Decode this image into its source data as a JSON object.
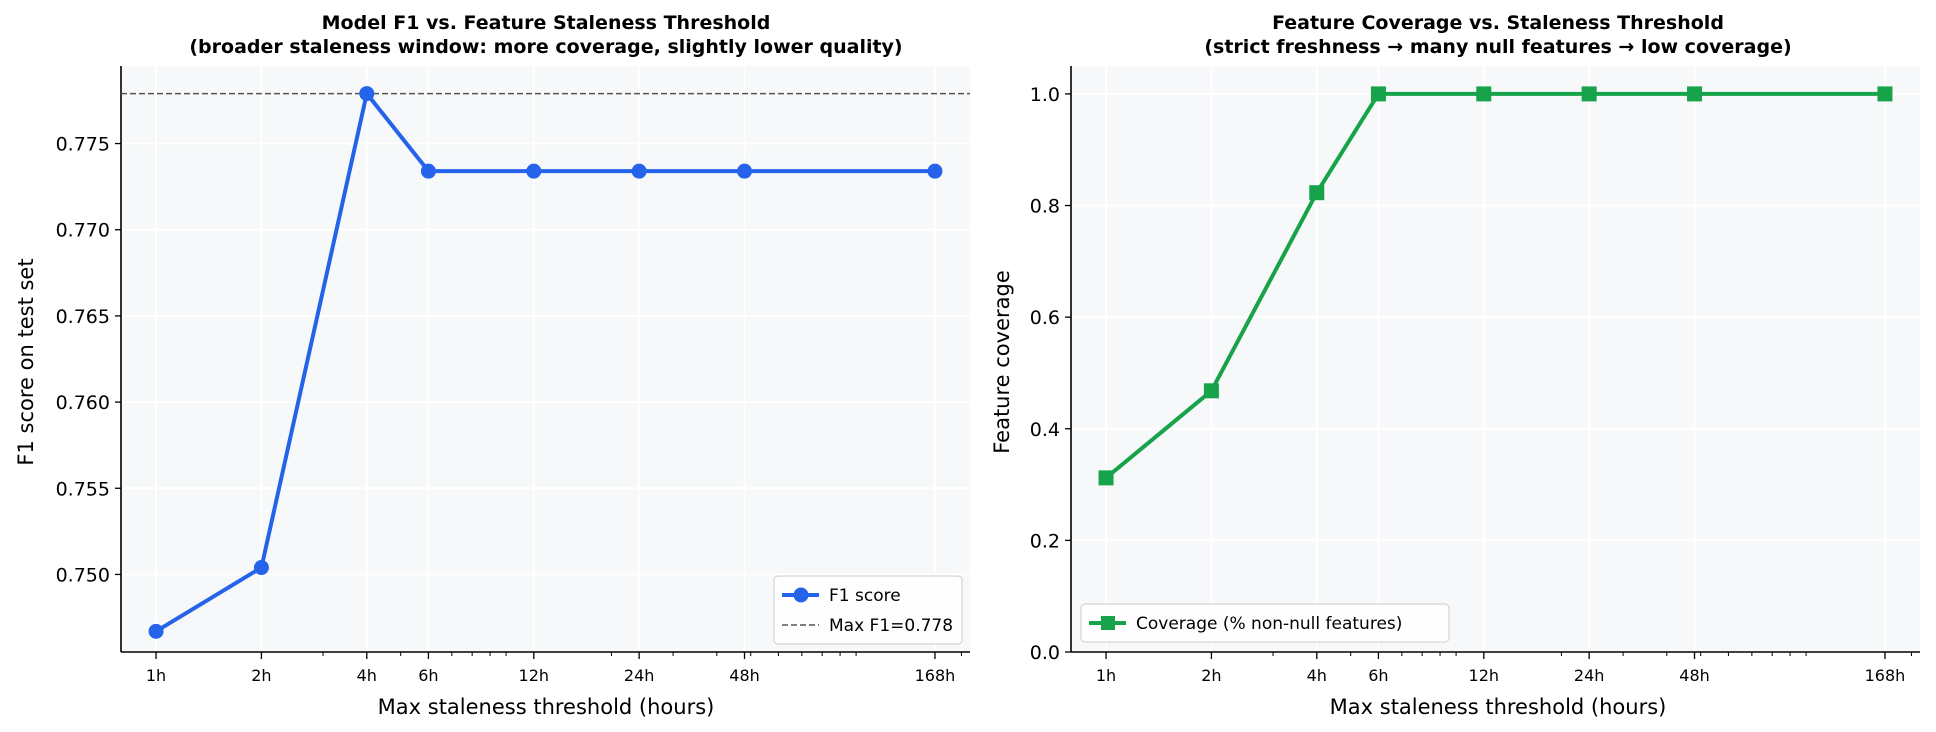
{
  "chart_data": [
    {
      "type": "line",
      "title_line1": "Model F1 vs. Feature Staleness Threshold",
      "title_line2": "(broader staleness window: more coverage, slightly lower quality)",
      "xlabel": "Max staleness threshold (hours)",
      "ylabel": "F1 score on test set",
      "x_scale": "log",
      "x": [
        1,
        2,
        4,
        6,
        12,
        24,
        48,
        168
      ],
      "x_tick_labels": [
        "1h",
        "2h",
        "4h",
        "6h",
        "12h",
        "24h",
        "48h",
        "168h"
      ],
      "y_ticks": [
        0.75,
        0.755,
        0.76,
        0.765,
        0.77,
        0.775
      ],
      "y_tick_labels": [
        "0.750",
        "0.755",
        "0.760",
        "0.765",
        "0.770",
        "0.775"
      ],
      "ylim": [
        0.7455,
        0.7795
      ],
      "series": [
        {
          "name": "F1 score",
          "values": [
            0.7467,
            0.7504,
            0.7779,
            0.7734,
            0.7734,
            0.7734,
            0.7734,
            0.7734
          ],
          "color": "#2563eb",
          "marker": "circle"
        }
      ],
      "reference_line": {
        "y": 0.7779,
        "label": "Max F1=0.778",
        "color": "#555555",
        "style": "dashed"
      },
      "legend_position": "lower-right",
      "grid": true,
      "plot_background": "#f6f8fa"
    },
    {
      "type": "line",
      "title_line1": "Feature Coverage vs. Staleness Threshold",
      "title_line2": "(strict freshness → many null features → low coverage)",
      "xlabel": "Max staleness threshold (hours)",
      "ylabel": "Feature coverage",
      "x_scale": "log",
      "x": [
        1,
        2,
        4,
        6,
        12,
        24,
        48,
        168
      ],
      "x_tick_labels": [
        "1h",
        "2h",
        "4h",
        "6h",
        "12h",
        "24h",
        "48h",
        "168h"
      ],
      "y_ticks": [
        0.0,
        0.2,
        0.4,
        0.6,
        0.8,
        1.0
      ],
      "y_tick_labels": [
        "0.0",
        "0.2",
        "0.4",
        "0.6",
        "0.8",
        "1.0"
      ],
      "ylim": [
        0.0,
        1.05
      ],
      "series": [
        {
          "name": "Coverage (% non-null features)",
          "values": [
            0.312,
            0.468,
            0.823,
            1.0,
            1.0,
            1.0,
            1.0,
            1.0
          ],
          "color": "#16a34a",
          "marker": "square"
        }
      ],
      "legend_position": "lower-left",
      "grid": true,
      "plot_background": "#f6f8fa"
    }
  ]
}
